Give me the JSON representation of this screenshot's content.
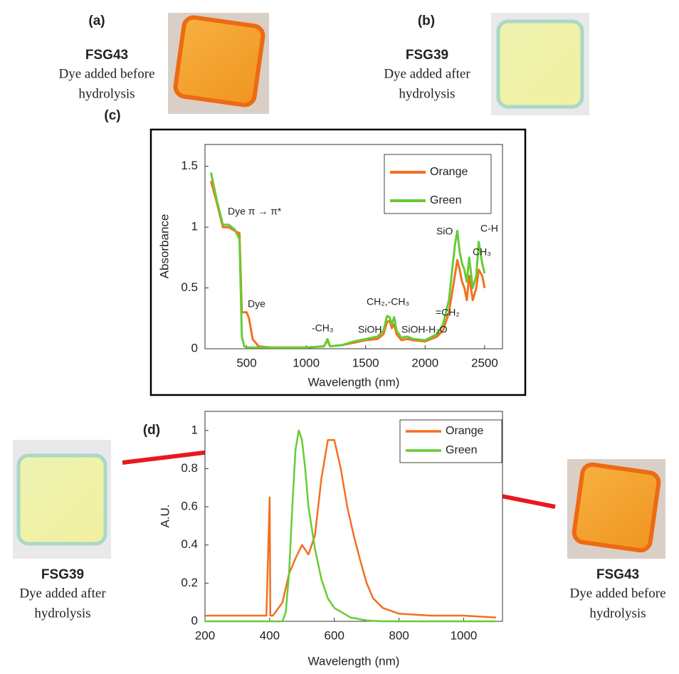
{
  "photos": [
    {
      "label": "(a)",
      "name": "FSG43",
      "lines": [
        "Dye added before",
        "hydrolysis"
      ]
    },
    {
      "label": "(b)",
      "name": "FSG39",
      "lines": [
        "Dye added after",
        "hydrolysis"
      ]
    },
    {
      "name": "FSG39",
      "lines": [
        "Dye added after",
        "hydrolysis"
      ]
    },
    {
      "name": "FSG43",
      "lines": [
        "Dye added before",
        "hydrolysis"
      ]
    }
  ],
  "chart_data": [
    {
      "type": "line",
      "panel_label": "(c)",
      "x_label": "Wavelength (nm)",
      "y_label": "Absorbance",
      "xlim": [
        150,
        2650
      ],
      "ylim": [
        0,
        1.68
      ],
      "xticks": [
        500,
        1000,
        1500,
        2000,
        2500
      ],
      "yticks": [
        0,
        0.5,
        1,
        1.5
      ],
      "legend": "top-right",
      "annotations": [
        "Dye π → π*",
        "Dye",
        "-CH₃",
        "SiOH",
        "CH₂,-CH₃",
        "SiOH-H₂O",
        "=CH₂",
        "SiO",
        "CH₃",
        "C-H"
      ],
      "series": [
        {
          "name": "Orange",
          "color": "#f36f21",
          "x": [
            200,
            250,
            300,
            350,
            400,
            440,
            460,
            480,
            500,
            520,
            550,
            600,
            700,
            800,
            1000,
            1150,
            1180,
            1200,
            1300,
            1400,
            1500,
            1600,
            1650,
            1680,
            1700,
            1720,
            1740,
            1760,
            1800,
            1850,
            1900,
            2000,
            2100,
            2150,
            2200,
            2250,
            2270,
            2290,
            2310,
            2330,
            2350,
            2370,
            2400,
            2430,
            2450,
            2480,
            2500
          ],
          "values": [
            1.38,
            1.2,
            1.0,
            1.0,
            0.97,
            0.95,
            0.3,
            0.3,
            0.3,
            0.25,
            0.08,
            0.02,
            0.01,
            0.01,
            0.01,
            0.02,
            0.07,
            0.02,
            0.03,
            0.05,
            0.07,
            0.08,
            0.12,
            0.22,
            0.23,
            0.17,
            0.2,
            0.12,
            0.07,
            0.08,
            0.07,
            0.06,
            0.1,
            0.15,
            0.3,
            0.6,
            0.73,
            0.65,
            0.55,
            0.5,
            0.4,
            0.6,
            0.4,
            0.5,
            0.65,
            0.6,
            0.5
          ]
        },
        {
          "name": "Green",
          "color": "#66cc33",
          "x": [
            200,
            250,
            300,
            350,
            400,
            440,
            460,
            480,
            500,
            520,
            550,
            600,
            700,
            800,
            1000,
            1150,
            1180,
            1200,
            1300,
            1400,
            1500,
            1600,
            1650,
            1680,
            1700,
            1720,
            1740,
            1760,
            1800,
            1850,
            1900,
            2000,
            2100,
            2150,
            2200,
            2250,
            2270,
            2290,
            2310,
            2330,
            2350,
            2370,
            2400,
            2430,
            2450,
            2480,
            2500
          ],
          "values": [
            1.45,
            1.22,
            1.02,
            1.02,
            0.98,
            0.9,
            0.1,
            0.02,
            0.01,
            0.01,
            0.01,
            0.01,
            0.01,
            0.01,
            0.01,
            0.02,
            0.08,
            0.02,
            0.03,
            0.06,
            0.08,
            0.1,
            0.15,
            0.27,
            0.26,
            0.2,
            0.26,
            0.15,
            0.09,
            0.1,
            0.08,
            0.07,
            0.12,
            0.2,
            0.4,
            0.85,
            0.97,
            0.8,
            0.7,
            0.65,
            0.55,
            0.75,
            0.5,
            0.6,
            0.88,
            0.7,
            0.62
          ]
        }
      ]
    },
    {
      "type": "line",
      "panel_label": "(d)",
      "x_label": "Wavelength (nm)",
      "y_label": "A.U.",
      "xlim": [
        200,
        1120
      ],
      "ylim": [
        0,
        1.1
      ],
      "xticks": [
        200,
        400,
        600,
        800,
        1000
      ],
      "yticks": [
        0,
        0.2,
        0.4,
        0.6,
        0.8,
        1
      ],
      "legend": "top-right",
      "series": [
        {
          "name": "Orange",
          "color": "#f36f21",
          "x": [
            200,
            300,
            390,
            400,
            402,
            410,
            440,
            460,
            480,
            500,
            520,
            540,
            560,
            580,
            600,
            620,
            640,
            660,
            680,
            700,
            720,
            750,
            800,
            900,
            1000,
            1100
          ],
          "values": [
            0.03,
            0.03,
            0.03,
            0.65,
            0.03,
            0.03,
            0.1,
            0.25,
            0.33,
            0.4,
            0.35,
            0.45,
            0.75,
            0.95,
            0.95,
            0.8,
            0.6,
            0.45,
            0.32,
            0.2,
            0.12,
            0.07,
            0.04,
            0.03,
            0.03,
            0.02
          ]
        },
        {
          "name": "Green",
          "color": "#66cc33",
          "x": [
            200,
            440,
            450,
            460,
            470,
            480,
            490,
            500,
            510,
            520,
            540,
            560,
            580,
            600,
            650,
            700,
            750,
            1100
          ],
          "values": [
            0,
            0,
            0.05,
            0.25,
            0.6,
            0.9,
            1.0,
            0.95,
            0.8,
            0.6,
            0.38,
            0.22,
            0.12,
            0.07,
            0.02,
            0.005,
            0,
            0
          ]
        }
      ]
    }
  ]
}
